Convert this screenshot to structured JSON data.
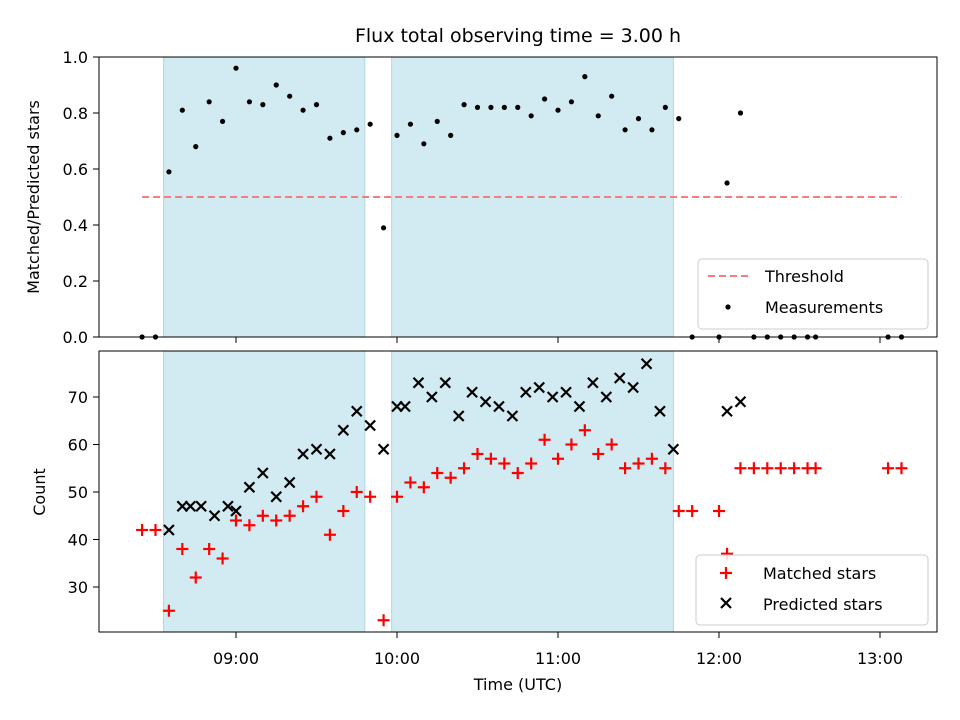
{
  "chart_data": [
    {
      "type": "scatter",
      "title": "Flux total observing time = 3.00 h",
      "xlabel": "",
      "ylabel": "Matched/Predicted stars",
      "ylim": [
        0,
        1
      ],
      "yticks": [
        "0.0",
        "0.2",
        "0.4",
        "0.6",
        "0.8",
        "1.0"
      ],
      "xlim": [
        "08:12",
        "13:22"
      ],
      "shaded_intervals": [
        [
          "08:33",
          "09:48"
        ],
        [
          "09:58",
          "11:43"
        ]
      ],
      "shade_color": "#add8e6",
      "threshold": {
        "name": "Threshold",
        "value": 0.5,
        "x_range": [
          "08:25",
          "13:08"
        ],
        "color": "#f08080",
        "style": "dashed"
      },
      "series": [
        {
          "name": "Measurements",
          "color": "#000000",
          "marker": "dot",
          "x": [
            "08:25",
            "08:30",
            "08:35",
            "08:40",
            "08:45",
            "08:50",
            "08:55",
            "09:00",
            "09:05",
            "09:10",
            "09:15",
            "09:20",
            "09:25",
            "09:30",
            "09:35",
            "09:40",
            "09:45",
            "09:50",
            "09:55",
            "10:00",
            "10:05",
            "10:10",
            "10:15",
            "10:20",
            "10:25",
            "10:30",
            "10:35",
            "10:40",
            "10:45",
            "10:50",
            "10:55",
            "11:00",
            "11:05",
            "11:10",
            "11:15",
            "11:20",
            "11:25",
            "11:30",
            "11:35",
            "11:40",
            "11:45",
            "11:50",
            "12:00",
            "12:03",
            "12:08",
            "12:13",
            "12:18",
            "12:23",
            "12:28",
            "12:33",
            "12:36",
            "13:03",
            "13:08"
          ],
          "y": [
            0.0,
            0.0,
            0.59,
            0.81,
            0.68,
            0.84,
            0.77,
            0.96,
            0.84,
            0.83,
            0.9,
            0.86,
            0.81,
            0.83,
            0.71,
            0.73,
            0.74,
            0.76,
            0.39,
            0.72,
            0.76,
            0.69,
            0.77,
            0.72,
            0.83,
            0.82,
            0.82,
            0.82,
            0.82,
            0.79,
            0.85,
            0.81,
            0.84,
            0.93,
            0.79,
            0.86,
            0.74,
            0.78,
            0.74,
            0.82,
            0.78,
            0.0,
            0.0,
            0.55,
            0.8,
            0.0,
            0.0,
            0.0,
            0.0,
            0.0,
            0.0,
            0.0,
            0.0
          ]
        }
      ],
      "legend": {
        "position": "lower-right",
        "entries": [
          "Threshold",
          "Measurements"
        ]
      }
    },
    {
      "type": "scatter",
      "title": "",
      "xlabel": "Time (UTC)",
      "ylabel": "Count",
      "ylim": [
        20,
        80
      ],
      "yticks": [
        "30",
        "40",
        "50",
        "60",
        "70"
      ],
      "xticks": [
        "09:00",
        "10:00",
        "11:00",
        "12:00",
        "13:00"
      ],
      "xlim": [
        "08:12",
        "13:22"
      ],
      "shaded_intervals": [
        [
          "08:33",
          "09:48"
        ],
        [
          "09:58",
          "11:43"
        ]
      ],
      "shade_color": "#add8e6",
      "series": [
        {
          "name": "Matched stars",
          "color": "#ff0000",
          "marker": "plus",
          "x": [
            "08:25",
            "08:30",
            "08:35",
            "08:40",
            "08:45",
            "08:50",
            "08:55",
            "09:00",
            "09:05",
            "09:10",
            "09:15",
            "09:20",
            "09:25",
            "09:30",
            "09:35",
            "09:40",
            "09:45",
            "09:50",
            "09:55",
            "10:00",
            "10:05",
            "10:10",
            "10:15",
            "10:20",
            "10:25",
            "10:30",
            "10:35",
            "10:40",
            "10:45",
            "10:50",
            "10:55",
            "11:00",
            "11:05",
            "11:10",
            "11:15",
            "11:20",
            "11:25",
            "11:30",
            "11:35",
            "11:40",
            "11:45",
            "11:50",
            "12:00",
            "12:03",
            "12:08",
            "12:13",
            "12:18",
            "12:23",
            "12:28",
            "12:33",
            "12:36",
            "13:03",
            "13:08"
          ],
          "y": [
            42,
            42,
            25,
            38,
            32,
            38,
            36,
            44,
            43,
            45,
            44,
            45,
            47,
            49,
            41,
            46,
            50,
            49,
            23,
            49,
            52,
            51,
            54,
            53,
            55,
            58,
            57,
            56,
            54,
            56,
            61,
            57,
            60,
            63,
            58,
            60,
            55,
            56,
            57,
            55,
            46,
            46,
            46,
            37,
            55,
            55,
            55,
            55,
            55,
            55,
            55,
            55,
            55
          ]
        },
        {
          "name": "Predicted stars",
          "color": "#000000",
          "marker": "x",
          "x": [
            "08:35",
            "08:40",
            "08:43",
            "08:47",
            "08:52",
            "08:57",
            "09:00",
            "09:05",
            "09:10",
            "09:15",
            "09:20",
            "09:25",
            "09:30",
            "09:35",
            "09:40",
            "09:45",
            "09:50",
            "09:55",
            "10:00",
            "10:03",
            "10:08",
            "10:13",
            "10:18",
            "10:23",
            "10:28",
            "10:33",
            "10:38",
            "10:43",
            "10:48",
            "10:53",
            "10:58",
            "11:03",
            "11:08",
            "11:13",
            "11:18",
            "11:23",
            "11:28",
            "11:33",
            "11:38",
            "11:43",
            "12:03",
            "12:08"
          ],
          "y": [
            42,
            47,
            47,
            47,
            45,
            47,
            46,
            51,
            54,
            49,
            52,
            58,
            59,
            58,
            63,
            67,
            64,
            59,
            68,
            68,
            73,
            70,
            73,
            66,
            71,
            69,
            68,
            66,
            71,
            72,
            70,
            71,
            68,
            73,
            70,
            74,
            72,
            77,
            67,
            59,
            67,
            69
          ]
        }
      ],
      "legend": {
        "position": "lower-right",
        "entries": [
          "Matched stars",
          "Predicted stars"
        ]
      }
    }
  ]
}
